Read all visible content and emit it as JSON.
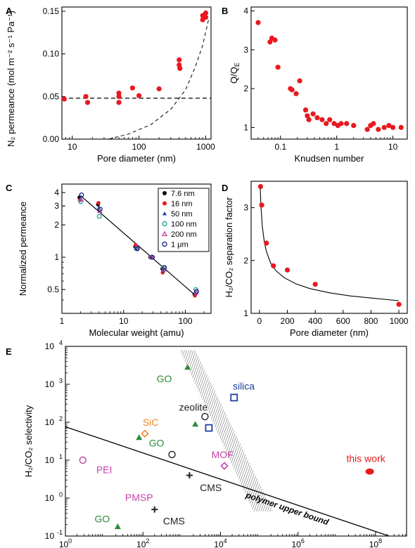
{
  "chart_data": [
    {
      "panel": "A",
      "type": "scatter",
      "xlabel": "Pore diameter (nm)",
      "ylabel": "N₂ permeance (mol m⁻² s⁻¹ Pa⁻¹)",
      "xscale": "log",
      "xlim": [
        7,
        1200
      ],
      "ylim": [
        0.0,
        0.155
      ],
      "xticks": [
        10,
        100,
        1000
      ],
      "xtick_labels": [
        "10",
        "100",
        "1000"
      ],
      "yticks": [
        0.0,
        0.05,
        0.1,
        0.15
      ],
      "ytick_labels": [
        "0.00",
        "0.05",
        "0.10",
        "0.15"
      ],
      "color": "#e8191f",
      "x": [
        7.6,
        16,
        17,
        50,
        50,
        50,
        80,
        100,
        200,
        400,
        400,
        410,
        900,
        900,
        1000,
        1000
      ],
      "y": [
        0.047,
        0.05,
        0.043,
        0.054,
        0.05,
        0.043,
        0.06,
        0.051,
        0.059,
        0.093,
        0.087,
        0.083,
        0.14,
        0.145,
        0.148,
        0.143
      ],
      "dashed_fit_horizontal": 0.048,
      "dashed_fit_curve_x": [
        35,
        70,
        150,
        300,
        500,
        700,
        900,
        1100
      ],
      "dashed_fit_curve_y": [
        0.0,
        0.006,
        0.017,
        0.035,
        0.058,
        0.085,
        0.11,
        0.14
      ]
    },
    {
      "panel": "B",
      "type": "scatter",
      "xlabel": "Knudsen number",
      "ylabel": "Q/Q_E",
      "xscale": "log",
      "xlim": [
        0.03,
        18
      ],
      "ylim": [
        0.7,
        4.1
      ],
      "xticks": [
        0.1,
        1,
        10
      ],
      "xtick_labels": [
        "0.1",
        "1",
        "10"
      ],
      "yticks": [
        1,
        2,
        3,
        4
      ],
      "ytick_labels": [
        "1",
        "2",
        "3",
        "4"
      ],
      "color": "#e8191f",
      "x": [
        0.04,
        0.065,
        0.07,
        0.08,
        0.09,
        0.15,
        0.16,
        0.19,
        0.22,
        0.28,
        0.3,
        0.32,
        0.38,
        0.45,
        0.55,
        0.65,
        0.75,
        0.9,
        1.05,
        1.2,
        1.5,
        2.0,
        3.5,
        4.0,
        4.5,
        5.5,
        7.0,
        8.5,
        10.0,
        14.0
      ],
      "y": [
        3.7,
        3.2,
        3.3,
        3.25,
        2.55,
        2.0,
        1.97,
        1.87,
        2.2,
        1.45,
        1.3,
        1.2,
        1.35,
        1.25,
        1.2,
        1.1,
        1.2,
        1.1,
        1.05,
        1.1,
        1.1,
        1.05,
        0.95,
        1.05,
        1.1,
        0.95,
        1.0,
        1.05,
        1.0,
        1.0
      ]
    },
    {
      "panel": "C",
      "type": "scatter",
      "xlabel": "Molecular weight (amu)",
      "ylabel": "Normalized permeance",
      "xscale": "log",
      "yscale": "log",
      "xlim": [
        1,
        260
      ],
      "ylim": [
        0.3,
        4.8
      ],
      "xticks": [
        1,
        10,
        100
      ],
      "xtick_labels": [
        "1",
        "10",
        "100"
      ],
      "yticks": [
        0.5,
        1,
        2,
        3,
        4
      ],
      "ytick_labels": [
        "0.5",
        "1",
        "2",
        "3",
        "4"
      ],
      "legend_position": "top-right",
      "fit_line": {
        "x": [
          2,
          146
        ],
        "y": [
          3.75,
          0.44
        ]
      },
      "series": [
        {
          "name": "7.6 nm",
          "marker": "dot",
          "color": "#000000",
          "x": [
            2,
            4,
            16,
            28,
            44,
            146
          ],
          "y": [
            3.6,
            3.1,
            1.25,
            1.0,
            0.78,
            0.45
          ]
        },
        {
          "name": "16 nm",
          "marker": "dot",
          "color": "#e8191f",
          "x": [
            2,
            4,
            16,
            28,
            44,
            146
          ],
          "y": [
            3.4,
            3.2,
            1.3,
            1.0,
            0.72,
            0.44
          ]
        },
        {
          "name": "50 nm",
          "marker": "triangle",
          "color": "#1f3fa6",
          "x": [
            2,
            4,
            16,
            28,
            44,
            146
          ],
          "y": [
            3.5,
            2.9,
            1.2,
            1.0,
            0.75,
            0.46
          ]
        },
        {
          "name": "100 nm",
          "marker": "circle",
          "color": "#2aa7a0",
          "x": [
            2,
            4,
            16,
            28,
            44,
            146
          ],
          "y": [
            3.3,
            2.4,
            1.2,
            1.0,
            0.8,
            0.5
          ]
        },
        {
          "name": "200 nm",
          "marker": "triangle-open",
          "color": "#c242a8",
          "x": [
            2,
            4,
            16,
            28,
            44,
            146
          ],
          "y": [
            3.45,
            2.7,
            1.25,
            1.0,
            0.77,
            0.47
          ]
        },
        {
          "name": "1 μm",
          "marker": "circle",
          "color": "#1f2a7a",
          "x": [
            2,
            4,
            16,
            28,
            44,
            146
          ],
          "y": [
            3.8,
            2.8,
            1.2,
            1.0,
            0.8,
            0.48
          ]
        }
      ]
    },
    {
      "panel": "D",
      "type": "scatter",
      "xlabel": "Pore diameter (nm)",
      "ylabel": "H₂/CO₂ separation factor",
      "xlim": [
        -60,
        1060
      ],
      "ylim": [
        1.0,
        3.5
      ],
      "xticks": [
        0,
        200,
        400,
        600,
        800,
        1000
      ],
      "xtick_labels": [
        "0",
        "200",
        "400",
        "600",
        "800",
        "1000"
      ],
      "yticks": [
        1,
        2,
        3
      ],
      "ytick_labels": [
        "1",
        "2",
        "3"
      ],
      "color": "#e8191f",
      "x": [
        7.6,
        16,
        50,
        100,
        200,
        400,
        1000
      ],
      "y": [
        3.4,
        3.05,
        2.33,
        1.9,
        1.82,
        1.55,
        1.17
      ],
      "fit_curve_x": [
        5,
        10,
        20,
        35,
        50,
        80,
        120,
        180,
        260,
        360,
        500,
        650,
        800,
        1000
      ],
      "fit_curve_y": [
        3.4,
        3.05,
        2.65,
        2.35,
        2.17,
        1.95,
        1.8,
        1.67,
        1.56,
        1.47,
        1.39,
        1.33,
        1.29,
        1.24
      ]
    },
    {
      "panel": "E",
      "type": "scatter",
      "xlabel": "",
      "ylabel": "H₂/CO₂ selectivity",
      "xscale": "log",
      "yscale": "log",
      "xlim_exponent": [
        0,
        8.8
      ],
      "ylim_exponent": [
        -1,
        4
      ],
      "xtick_exponents": [
        0,
        2,
        4,
        6,
        8
      ],
      "xtick_base": "10",
      "ytick_exponents": [
        -1,
        0,
        1,
        2,
        3,
        4
      ],
      "ytick_base": "10",
      "upper_bound_label": "polymer upper bound",
      "upper_bound_line_exponents": {
        "x": [
          0,
          8.35
        ],
        "y": [
          1.88,
          -1.0
        ]
      },
      "hatched_band_exponents": {
        "x": [
          2.95,
          3.35,
          5.35,
          4.85
        ],
        "y": [
          3.9,
          3.9,
          -0.35,
          -0.35
        ]
      },
      "points": [
        {
          "label": "GO",
          "marker": "triangle",
          "color": "#2e8b3a",
          "x_exp": 3.15,
          "y_exp": 3.45,
          "label_x_exp": 2.55,
          "label_y_exp": 3.15
        },
        {
          "label": "silica",
          "marker": "square",
          "color": "#1f3fa6",
          "x_exp": 4.35,
          "y_exp": 2.65,
          "label_x_exp": 4.6,
          "label_y_exp": 2.95
        },
        {
          "label": "zeolite",
          "marker": "circle",
          "color": "#222222",
          "x_exp": 3.6,
          "y_exp": 2.15,
          "label_x_exp": 3.3,
          "label_y_exp": 2.4
        },
        {
          "label": "",
          "marker": "triangle",
          "color": "#2e8b3a",
          "x_exp": 3.35,
          "y_exp": 1.95
        },
        {
          "label": "",
          "marker": "square",
          "color": "#1f3fa6",
          "x_exp": 3.7,
          "y_exp": 1.85
        },
        {
          "label": "SiC",
          "marker": "diamond",
          "color": "#f0862a",
          "x_exp": 2.05,
          "y_exp": 1.7,
          "label_x_exp": 2.2,
          "label_y_exp": 2.0
        },
        {
          "label": "GO",
          "marker": "triangle",
          "color": "#2e8b3a",
          "x_exp": 1.9,
          "y_exp": 1.6,
          "label_x_exp": 2.35,
          "label_y_exp": 1.45
        },
        {
          "label": "",
          "marker": "circle",
          "color": "#222222",
          "x_exp": 2.75,
          "y_exp": 1.15
        },
        {
          "label": "MOF",
          "marker": "diamond",
          "color": "#c242a8",
          "x_exp": 4.1,
          "y_exp": 0.85,
          "label_x_exp": 4.05,
          "label_y_exp": 1.15
        },
        {
          "label": "PEI",
          "marker": "circle",
          "color": "#c242a8",
          "x_exp": 0.45,
          "y_exp": 1.0,
          "label_x_exp": 1.0,
          "label_y_exp": 0.75
        },
        {
          "label": "CMS",
          "marker": "plus",
          "color": "#222222",
          "x_exp": 3.2,
          "y_exp": 0.6,
          "label_x_exp": 3.75,
          "label_y_exp": 0.28
        },
        {
          "label": "PMSP",
          "marker": "plus",
          "color": "#222222",
          "x_exp": 2.3,
          "y_exp": -0.3,
          "label_x_exp": 1.9,
          "label_y_exp": 0.02,
          "label_color": "#c242a8"
        },
        {
          "label": "CMS",
          "marker": "none",
          "color": "#222222",
          "x_exp": 2.3,
          "y_exp": -0.3,
          "label_x_exp": 2.8,
          "label_y_exp": -0.6
        },
        {
          "label": "GO",
          "marker": "triangle",
          "color": "#2e8b3a",
          "x_exp": 1.35,
          "y_exp": -0.75,
          "label_x_exp": 0.95,
          "label_y_exp": -0.55
        },
        {
          "label": "this work",
          "marker": "ellipse",
          "color": "#e8191f",
          "x_exp": 7.85,
          "y_exp": 0.7,
          "label_x_exp": 7.75,
          "label_y_exp": 1.05,
          "label_color": "#e8191f"
        }
      ]
    }
  ]
}
